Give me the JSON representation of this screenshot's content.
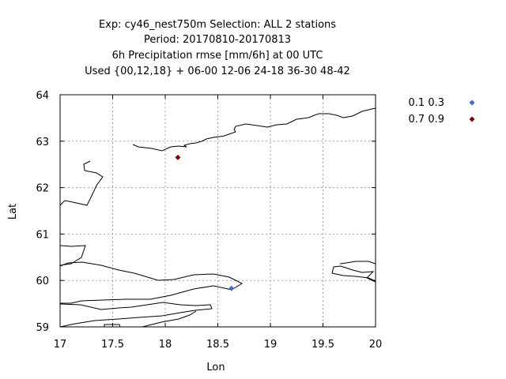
{
  "chart_data": {
    "type": "scatter",
    "title_lines": [
      "Exp: cy46_nest750m   Selection: ALL      2 stations",
      "Period: 20170810-20170813",
      "6h Precipitation rmse [mm/6h] at  00 UTC",
      "Used {00,12,18} + 06-00 12-06 24-18 36-30 48-42"
    ],
    "xlabel": "Lon",
    "ylabel": "Lat",
    "xlim": [
      17,
      20
    ],
    "ylim": [
      59,
      64
    ],
    "x_ticks": [
      "17",
      "17.5",
      "18",
      "18.5",
      "19",
      "19.5",
      "20"
    ],
    "y_ticks": [
      "59",
      "60",
      "61",
      "62",
      "63",
      "64"
    ],
    "grid": true,
    "legend_position": "right",
    "series": [
      {
        "name": "0.1 0.3",
        "color": "#3a6fd8",
        "points": [
          {
            "x": 18.63,
            "y": 59.83
          }
        ]
      },
      {
        "name": "0.7 0.9",
        "color": "#8b0000",
        "points": [
          {
            "x": 18.12,
            "y": 62.65
          }
        ]
      }
    ]
  }
}
